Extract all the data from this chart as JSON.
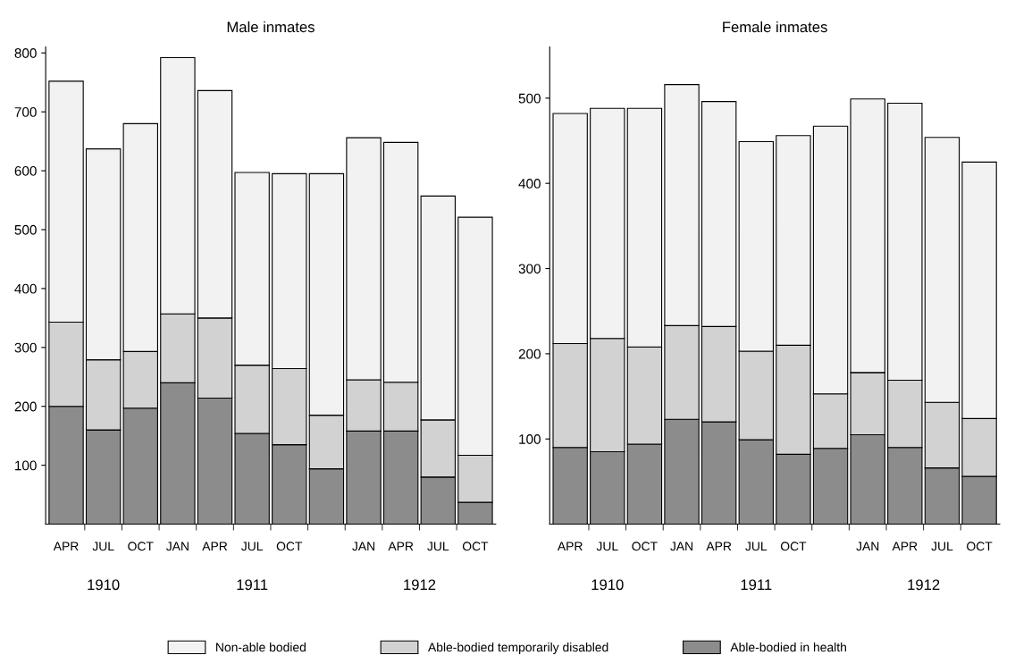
{
  "chart_data": [
    {
      "type": "bar",
      "title": "Male inmates",
      "stacked": true,
      "legend": "bottom",
      "grid": false,
      "categories": [
        "APR",
        "JUL",
        "OCT",
        "JAN",
        "APR",
        "JUL",
        "OCT",
        null,
        "JAN",
        "APR",
        "JUL",
        "OCT"
      ],
      "annotations": [
        "1910",
        "1911",
        "1912"
      ],
      "ylim": [
        0,
        810
      ],
      "yticks": [
        100,
        200,
        300,
        400,
        500,
        600,
        700,
        800
      ],
      "series": [
        {
          "name": "Able-bodied in health",
          "color": "#8c8c8c",
          "values": [
            200,
            160,
            197,
            240,
            214,
            154,
            135,
            94,
            158,
            158,
            80,
            37
          ]
        },
        {
          "name": "Able-bodied temporarily disabled",
          "color": "#d2d2d2",
          "values": [
            143,
            119,
            96,
            117,
            136,
            116,
            129,
            91,
            87,
            83,
            97,
            80
          ]
        },
        {
          "name": "Non-able bodied",
          "color": "#f2f2f2",
          "values": [
            409,
            358,
            387,
            435,
            386,
            327,
            331,
            410,
            411,
            407,
            380,
            404
          ]
        }
      ]
    },
    {
      "type": "bar",
      "title": "Female inmates",
      "stacked": true,
      "legend": "bottom",
      "grid": false,
      "categories": [
        "APR",
        "JUL",
        "OCT",
        "JAN",
        "APR",
        "JUL",
        "OCT",
        null,
        "JAN",
        "APR",
        "JUL",
        "OCT"
      ],
      "annotations": [
        "1910",
        "1911",
        "1912"
      ],
      "ylim": [
        0,
        560
      ],
      "yticks": [
        100,
        200,
        300,
        400,
        500
      ],
      "series": [
        {
          "name": "Able-bodied in health",
          "color": "#8c8c8c",
          "values": [
            90,
            85,
            94,
            123,
            120,
            99,
            82,
            89,
            105,
            90,
            66,
            56
          ]
        },
        {
          "name": "Able-bodied temporarily disabled",
          "color": "#d2d2d2",
          "values": [
            122,
            133,
            114,
            110,
            112,
            104,
            128,
            64,
            73,
            79,
            77,
            68
          ]
        },
        {
          "name": "Non-able bodied",
          "color": "#f2f2f2",
          "values": [
            270,
            270,
            280,
            283,
            264,
            246,
            246,
            314,
            321,
            325,
            311,
            301
          ]
        }
      ]
    }
  ]
}
